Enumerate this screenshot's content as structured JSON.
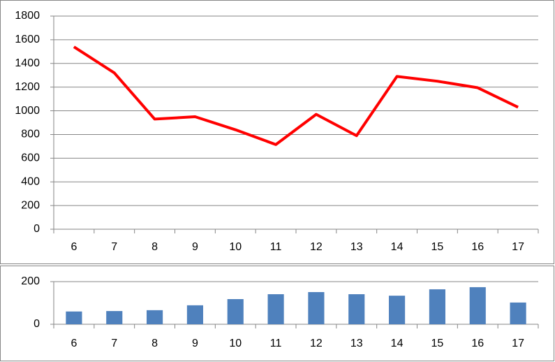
{
  "chart_data": [
    {
      "type": "line",
      "categories": [
        "6",
        "7",
        "8",
        "9",
        "10",
        "11",
        "12",
        "13",
        "14",
        "15",
        "16",
        "17"
      ],
      "series": [
        {
          "name": null,
          "color": "#ff0000",
          "values": [
            1540,
            1320,
            930,
            950,
            840,
            715,
            970,
            790,
            1290,
            1250,
            1195,
            1030
          ]
        }
      ],
      "ylim": [
        0,
        1800
      ],
      "yticks": [
        0,
        200,
        400,
        600,
        800,
        1000,
        1200,
        1400,
        1600,
        1800
      ],
      "grid": true
    },
    {
      "type": "bar",
      "categories": [
        "6",
        "7",
        "8",
        "9",
        "10",
        "11",
        "12",
        "13",
        "14",
        "15",
        "16",
        "17"
      ],
      "series": [
        {
          "name": null,
          "color": "#4f81bd",
          "values": [
            60,
            62,
            66,
            89,
            118,
            141,
            151,
            141,
            134,
            164,
            174,
            102
          ]
        }
      ],
      "ylim": [
        0,
        200
      ],
      "yticks": [
        0,
        200
      ],
      "grid": true
    }
  ]
}
